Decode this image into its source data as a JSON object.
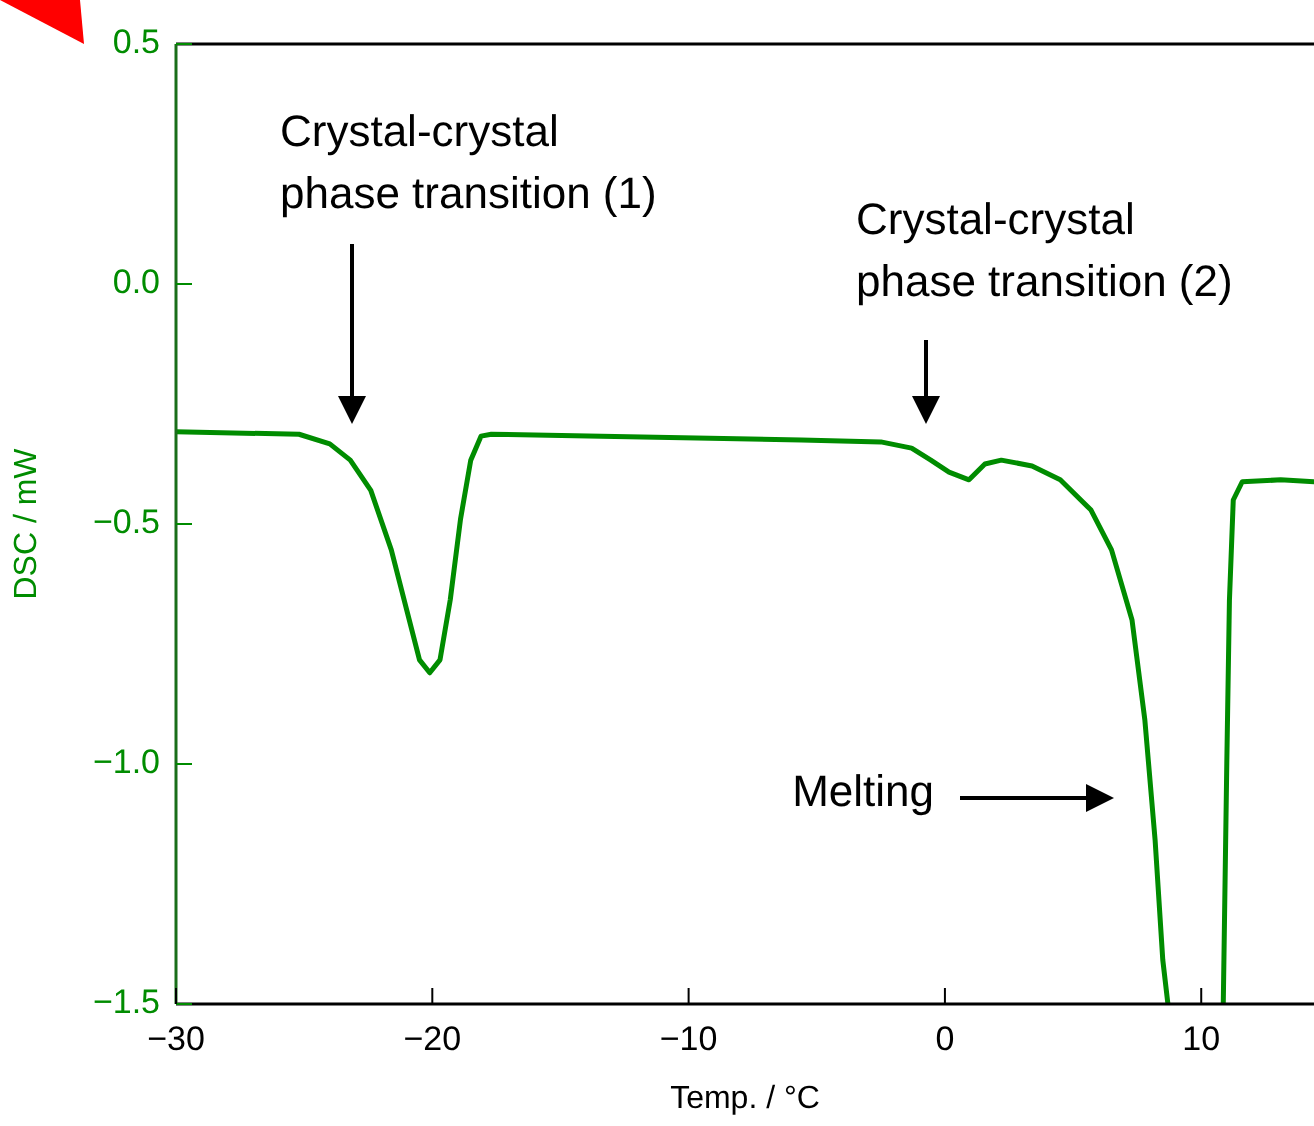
{
  "chart_data": {
    "type": "line",
    "xlabel": "Temp. / °C",
    "ylabel": "DSC / mW",
    "series": [
      {
        "color": "#008c00",
        "x": [
          -30,
          -25.2,
          -24,
          -23.2,
          -22.4,
          -21.6,
          -21.0,
          -20.5,
          -20.1,
          -19.7,
          -19.3,
          -18.9,
          -18.5,
          -18.1,
          -17.7,
          -13.4,
          -5.6,
          -2.5,
          -1.3,
          -0.55,
          0.16,
          0.94,
          1.56,
          2.2,
          3.4,
          4.5,
          5.7,
          6.5,
          7.3,
          7.8,
          8.2,
          8.5,
          8.7,
          9.8,
          10.86,
          11.0,
          11.1,
          11.25,
          11.6,
          13.1,
          14.4
        ],
        "values": [
          -0.308,
          -0.313,
          -0.333,
          -0.367,
          -0.43,
          -0.554,
          -0.679,
          -0.783,
          -0.81,
          -0.783,
          -0.658,
          -0.49,
          -0.367,
          -0.317,
          -0.313,
          -0.317,
          -0.325,
          -0.329,
          -0.342,
          -0.367,
          -0.392,
          -0.408,
          -0.375,
          -0.367,
          -0.379,
          -0.408,
          -0.471,
          -0.554,
          -0.7,
          -0.908,
          -1.158,
          -1.408,
          -1.5,
          null,
          -1.5,
          -0.99,
          -0.66,
          -0.45,
          -0.412,
          -0.408,
          -0.412
        ]
      }
    ],
    "xlim": [
      -30,
      14.4
    ],
    "xticks": [
      -30,
      -20,
      -10,
      0,
      10
    ],
    "ylim": [
      -1.5,
      0.5
    ],
    "yticks": [
      {
        "value": -1.5,
        "label": "−1.5"
      },
      {
        "value": -1.0,
        "label": "−1.0"
      },
      {
        "value": -0.5,
        "label": "−0.5"
      },
      {
        "value": 0,
        "label": "0.0"
      },
      {
        "value": 0.5,
        "label": "0.5"
      }
    ],
    "annotations": [
      "Crystal-crystal\nphase transition (1)",
      "Crystal-crystal\nphase transition (2)",
      "Melting"
    ],
    "grid": false,
    "legend": false,
    "marker": "none",
    "line_style": "solid"
  }
}
